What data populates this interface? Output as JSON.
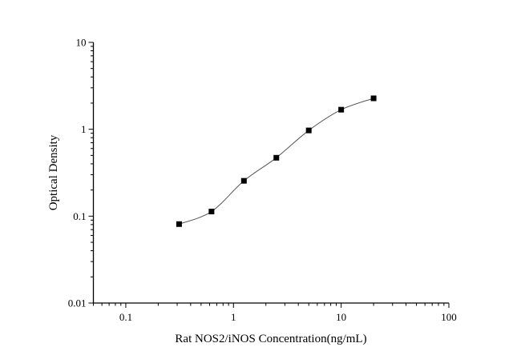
{
  "chart_data": {
    "type": "scatter",
    "title": "",
    "xlabel": "Rat NOS2/iNOS Concentration(ng/mL)",
    "ylabel": "Optical Density",
    "x_scale": "log",
    "y_scale": "log",
    "xlim": [
      0.05,
      100
    ],
    "ylim": [
      0.01,
      10
    ],
    "x_ticks": [
      "0.1",
      "1",
      "10",
      "100"
    ],
    "x_tick_values": [
      0.1,
      1,
      10,
      100
    ],
    "y_ticks": [
      "0.01",
      "0.1",
      "1",
      "10"
    ],
    "y_tick_values": [
      0.01,
      0.1,
      1,
      10
    ],
    "grid": false,
    "series": [
      {
        "x": [
          0.3125,
          0.625,
          1.25,
          2.5,
          5,
          10,
          20
        ],
        "y": [
          0.081,
          0.113,
          0.255,
          0.47,
          0.97,
          1.68,
          2.27
        ],
        "marker": "square",
        "marker_color": "#000000",
        "line": "smooth fitted curve",
        "line_color": "#555555"
      }
    ]
  }
}
